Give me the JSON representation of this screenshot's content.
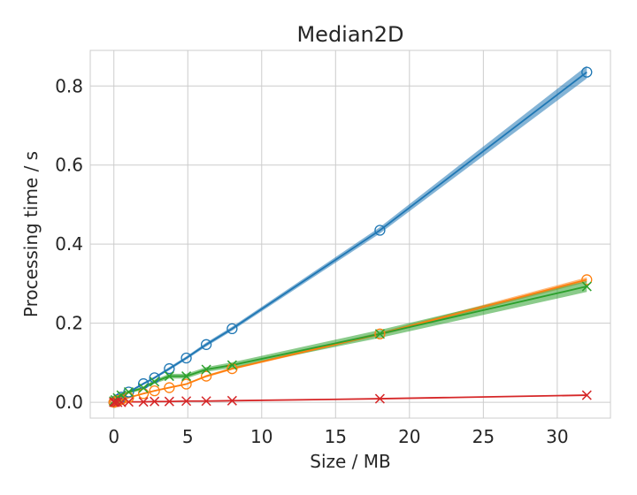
{
  "chart_data": {
    "type": "line",
    "title": "Median2D",
    "xlabel": "Size / MB",
    "ylabel": "Processing time / s",
    "xlim": [
      -1.6,
      33.6
    ],
    "ylim": [
      -0.04,
      0.89
    ],
    "xticks": [
      0,
      5,
      10,
      15,
      20,
      25,
      30
    ],
    "yticks": [
      0.0,
      0.2,
      0.4,
      0.6,
      0.8
    ],
    "grid": true,
    "legend": "none",
    "series": [
      {
        "color": "#1f77b4",
        "marker": "circle",
        "x": [
          0,
          0.1,
          0.25,
          0.5,
          1.0,
          2.0,
          2.75,
          3.75,
          4.9,
          6.25,
          8.0,
          18.0,
          32.0
        ],
        "y": [
          0.0,
          0.003,
          0.007,
          0.013,
          0.026,
          0.047,
          0.062,
          0.085,
          0.112,
          0.146,
          0.186,
          0.435,
          0.835
        ],
        "band": [
          0.001,
          0.001,
          0.001,
          0.002,
          0.002,
          0.003,
          0.003,
          0.004,
          0.004,
          0.005,
          0.005,
          0.008,
          0.016
        ]
      },
      {
        "color": "#ff7f0e",
        "marker": "circle",
        "x": [
          0,
          0.1,
          0.25,
          0.5,
          1.0,
          2.0,
          2.75,
          3.75,
          4.9,
          6.25,
          8.0,
          18.0,
          32.0
        ],
        "y": [
          0.0,
          0.002,
          0.004,
          0.007,
          0.012,
          0.022,
          0.029,
          0.037,
          0.046,
          0.066,
          0.085,
          0.173,
          0.31
        ],
        "band": [
          0.001,
          0.001,
          0.001,
          0.001,
          0.001,
          0.002,
          0.002,
          0.002,
          0.002,
          0.003,
          0.003,
          0.004,
          0.006
        ]
      },
      {
        "color": "#2ca02c",
        "marker": "x",
        "x": [
          0,
          0.1,
          0.25,
          0.5,
          1.0,
          2.0,
          2.75,
          3.75,
          4.9,
          6.25,
          8.0,
          18.0,
          32.0
        ],
        "y": [
          0.003,
          0.006,
          0.011,
          0.018,
          0.026,
          0.036,
          0.052,
          0.066,
          0.066,
          0.083,
          0.094,
          0.173,
          0.293
        ],
        "band": [
          0.002,
          0.002,
          0.003,
          0.003,
          0.004,
          0.004,
          0.005,
          0.006,
          0.006,
          0.006,
          0.007,
          0.01,
          0.014
        ]
      },
      {
        "color": "#d62728",
        "marker": "x",
        "x": [
          0,
          0.1,
          0.25,
          0.5,
          1.0,
          2.0,
          2.75,
          3.75,
          4.9,
          6.25,
          8.0,
          18.0,
          32.0
        ],
        "y": [
          0.0,
          0.0,
          0.0,
          0.0,
          0.001,
          0.001,
          0.002,
          0.002,
          0.003,
          0.003,
          0.004,
          0.009,
          0.018
        ],
        "band": [
          0.0002,
          0.0002,
          0.0002,
          0.0002,
          0.0003,
          0.0003,
          0.0004,
          0.0004,
          0.0004,
          0.0005,
          0.0005,
          0.0008,
          0.001
        ]
      }
    ]
  }
}
